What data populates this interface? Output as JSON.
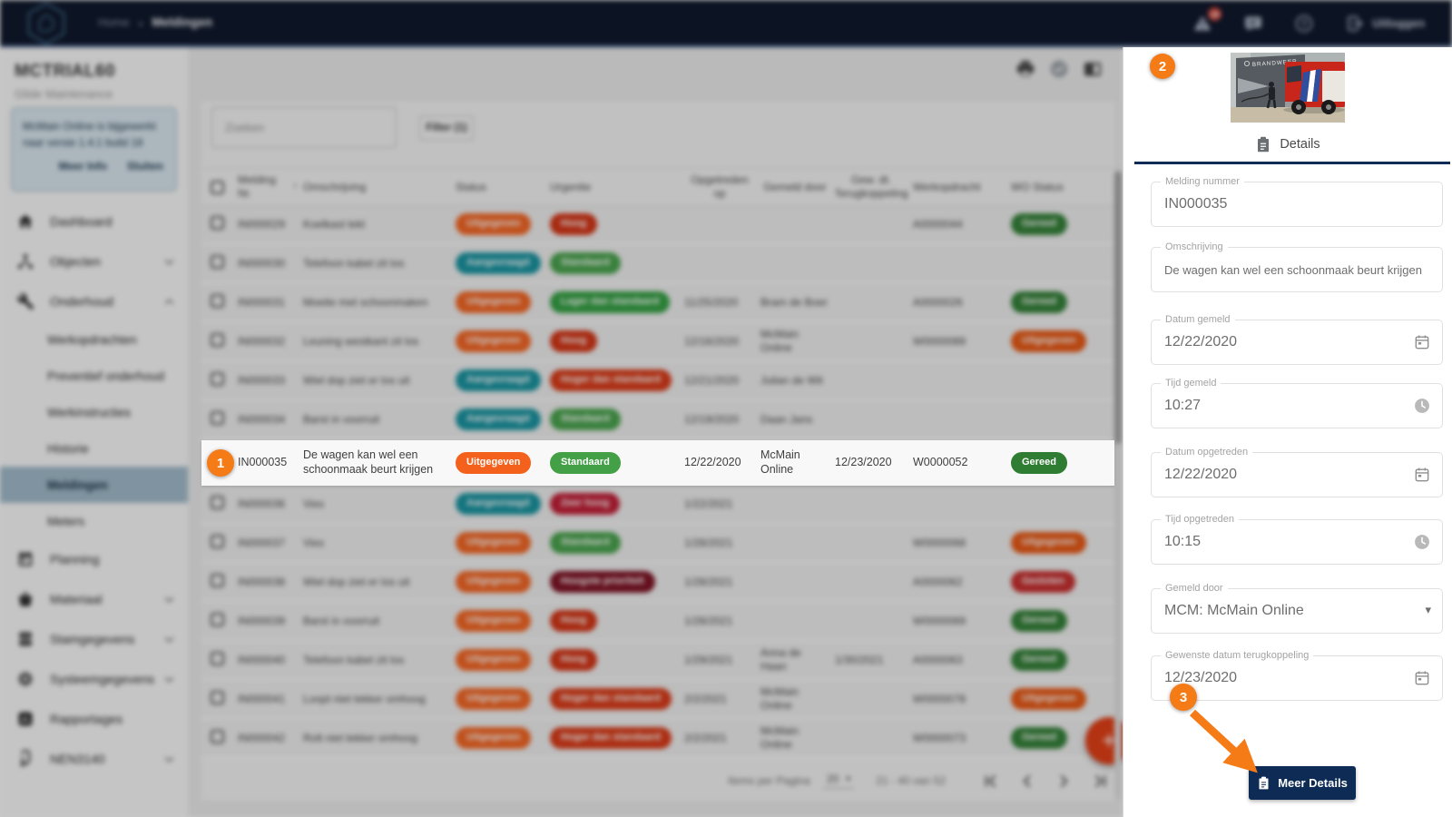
{
  "topbar": {
    "breadcrumb": {
      "home": "Home",
      "separator": "›",
      "current": "Meldingen"
    },
    "alert_badge": "29",
    "logout_label": "Uitloggen",
    "icons": [
      "warning-icon",
      "feedback-icon",
      "help-icon",
      "logout-icon"
    ]
  },
  "sidebar": {
    "title": "MCTRIAL60",
    "subtitle": "Glide Maintenance",
    "notice": {
      "text": "McMain Online is bijgewerkt naar versie 1.4.1 build 18",
      "more_info": "Meer Info",
      "close": "Sluiten"
    },
    "items": [
      {
        "label": "Dashboard",
        "icon": "home"
      },
      {
        "label": "Objecten",
        "icon": "hierarchy",
        "chevron": "down"
      },
      {
        "label": "Onderhoud",
        "icon": "wrench",
        "chevron": "up"
      },
      {
        "label": "Werkopdrachten",
        "sub": true
      },
      {
        "label": "Preventief onderhoud",
        "sub": true
      },
      {
        "label": "Werkinstructies",
        "sub": true
      },
      {
        "label": "Historie",
        "sub": true
      },
      {
        "label": "Meldingen",
        "sub": true,
        "active": true
      },
      {
        "label": "Meters",
        "sub": true
      },
      {
        "label": "Planning",
        "icon": "calendar"
      },
      {
        "label": "Materiaal",
        "icon": "basket",
        "chevron": "down"
      },
      {
        "label": "Stamgegevens",
        "icon": "database",
        "chevron": "down"
      },
      {
        "label": "Systeemgegevens",
        "icon": "gear",
        "chevron": "down"
      },
      {
        "label": "Rapportages",
        "icon": "report"
      },
      {
        "label": "NEN3140",
        "icon": "cable",
        "chevron": "down"
      }
    ]
  },
  "main": {
    "toolbar_icons": [
      "printer-icon",
      "approve-icon",
      "panel-toggle-icon"
    ],
    "search_placeholder": "Zoeken",
    "filter_label": "Filter (1)",
    "table": {
      "headers": [
        {
          "label": ""
        },
        {
          "label": "Melding Nr.",
          "sort": true
        },
        {
          "label": "Omschrijving"
        },
        {
          "label": "Status"
        },
        {
          "label": "Urgentie"
        },
        {
          "label": "Opgetreden op"
        },
        {
          "label": "Gemeld door"
        },
        {
          "label": "Gew. dt. Terugkoppeling"
        },
        {
          "label": "Werkopdracht"
        },
        {
          "label": "WO Status"
        }
      ],
      "rows": [
        {
          "nr": "IN000029",
          "oms": "Koelkast lekt",
          "status": "Uitgegeven",
          "urg": "Hoog",
          "opg": "",
          "gem": "",
          "gewdt": "",
          "wo": "A0000044",
          "wostat": "Gereed"
        },
        {
          "nr": "IN000030",
          "oms": "Telefoon kabel zit los",
          "status": "Aangevraagd",
          "urg": "Standaard",
          "opg": "",
          "gem": "",
          "gewdt": "",
          "wo": "",
          "wostat": ""
        },
        {
          "nr": "IN000031",
          "oms": "Moeite met schoonmaken",
          "status": "Uitgegeven",
          "urg": "Lager dan standaard",
          "opg": "11/25/2020",
          "gem": "Bram de Boer",
          "gewdt": "",
          "wo": "A0000026",
          "wostat": "Gereed"
        },
        {
          "nr": "IN000032",
          "oms": "Leuning westkant zit los",
          "status": "Uitgegeven",
          "urg": "Hoog",
          "opg": "12/16/2020",
          "gem": "McMain Online",
          "gewdt": "",
          "wo": "W0000089",
          "wostat": "Uitgegeven"
        },
        {
          "nr": "IN000033",
          "oms": "Wiel dop ziet er los uit",
          "status": "Aangevraagd",
          "urg": "Hoger dan standaard",
          "opg": "12/21/2020",
          "gem": "Julian de Wit",
          "gewdt": "",
          "wo": "",
          "wostat": ""
        },
        {
          "nr": "IN000034",
          "oms": "Barst in voorruit",
          "status": "Aangevraagd",
          "urg": "Standaard",
          "opg": "12/19/2020",
          "gem": "Daan Jans",
          "gewdt": "",
          "wo": "",
          "wostat": ""
        },
        {
          "nr": "IN000035",
          "oms": "De wagen kan wel een schoonmaak beurt krijgen",
          "status": "Uitgegeven",
          "urg": "Standaard",
          "opg": "12/22/2020",
          "gem": "McMain Online",
          "gewdt": "12/23/2020",
          "wo": "W0000052",
          "wostat": "Gereed",
          "highlight": true
        },
        {
          "nr": "IN000036",
          "oms": "Vies",
          "status": "Aangevraagd",
          "urg": "Zeer hoog",
          "opg": "1/22/2021",
          "gem": "",
          "gewdt": "",
          "wo": "",
          "wostat": ""
        },
        {
          "nr": "IN000037",
          "oms": "Vies",
          "status": "Uitgegeven",
          "urg": "Standaard",
          "opg": "1/28/2021",
          "gem": "",
          "gewdt": "",
          "wo": "W0000068",
          "wostat": "Uitgegeven"
        },
        {
          "nr": "IN000038",
          "oms": "Wiel dop ziet er los uit",
          "status": "Uitgegeven",
          "urg": "Hoogste prioriteit",
          "opg": "1/28/2021",
          "gem": "",
          "gewdt": "",
          "wo": "A0000062",
          "wostat": "Gesloten"
        },
        {
          "nr": "IN000039",
          "oms": "Barst in voorruit",
          "status": "Uitgegeven",
          "urg": "Hoog",
          "opg": "1/28/2021",
          "gem": "",
          "gewdt": "",
          "wo": "W0000069",
          "wostat": "Gereed"
        },
        {
          "nr": "IN000040",
          "oms": "Telefoon kabel zit los",
          "status": "Uitgegeven",
          "urg": "Hoog",
          "opg": "1/29/2021",
          "gem": "Anna de Haan",
          "gewdt": "1/30/2021",
          "wo": "A0000063",
          "wostat": "Gereed"
        },
        {
          "nr": "IN000041",
          "oms": "Loopt niet lekker omhoog",
          "status": "Uitgegeven",
          "urg": "Hoger dan standaard",
          "opg": "2/2/2021",
          "gem": "McMain Online",
          "gewdt": "",
          "wo": "W0000078",
          "wostat": "Uitgegeven"
        },
        {
          "nr": "IN000042",
          "oms": "Rolt niet lekker omhoog",
          "status": "Uitgegeven",
          "urg": "Hoger dan standaard",
          "opg": "2/2/2021",
          "gem": "McMain Online",
          "gewdt": "",
          "wo": "W0000073",
          "wostat": "Gereed"
        }
      ]
    },
    "pagination": {
      "items_per_page_label": "Items per Pagina",
      "items_per_page": "20",
      "range": "21 - 40 van 52",
      "nav_icons": [
        "first-page",
        "previous-page",
        "next-page",
        "last-page"
      ]
    },
    "fab": "+"
  },
  "detail_panel": {
    "image_label": "BRANDWEER",
    "tab_label": "Details",
    "fields": [
      {
        "label": "Melding nummer",
        "value": "IN000035",
        "icon": null
      },
      {
        "label": "Omschrijving",
        "value": "De wagen kan wel een schoonmaak beurt krijgen",
        "icon": null
      },
      {
        "label": "Datum gemeld",
        "value": "12/22/2020",
        "icon": "calendar"
      },
      {
        "label": "Tijd gemeld",
        "value": "10:27",
        "icon": "clock"
      },
      {
        "label": "Datum opgetreden",
        "value": "12/22/2020",
        "icon": "calendar"
      },
      {
        "label": "Tijd opgetreden",
        "value": "10:15",
        "icon": "clock"
      },
      {
        "label": "Gemeld door",
        "value": "MCM: McMain Online",
        "icon": "dropdown"
      },
      {
        "label": "Gewenste datum terugkoppeling",
        "value": "12/23/2020",
        "icon": "calendar"
      }
    ],
    "more_details_label": "Meer Details"
  },
  "annotations": {
    "step1": "1",
    "step2": "2",
    "step3": "3"
  },
  "colors": {
    "annotation": "#f57b17",
    "topbar_bg": "#071024",
    "accent_navy": "#0d2b55",
    "active_item_bg": "#9fb9c9",
    "fab": "#e2390f",
    "status": {
      "Uitgegeven": "#f4611d",
      "Aangevraagd": "#12919e"
    },
    "urgentie": {
      "Hoog": "#d32f0f",
      "Standaard": "#43a047",
      "Lager dan standaard": "#2e9e3d",
      "Hoger dan standaard": "#d93511",
      "Zeer hoog": "#c01830",
      "Hoogste prioriteit": "#7b0c1e"
    },
    "wo_status": {
      "Gereed": "#2e7d32",
      "Uitgegeven": "#e8540e",
      "Gesloten": "#c62828"
    }
  }
}
